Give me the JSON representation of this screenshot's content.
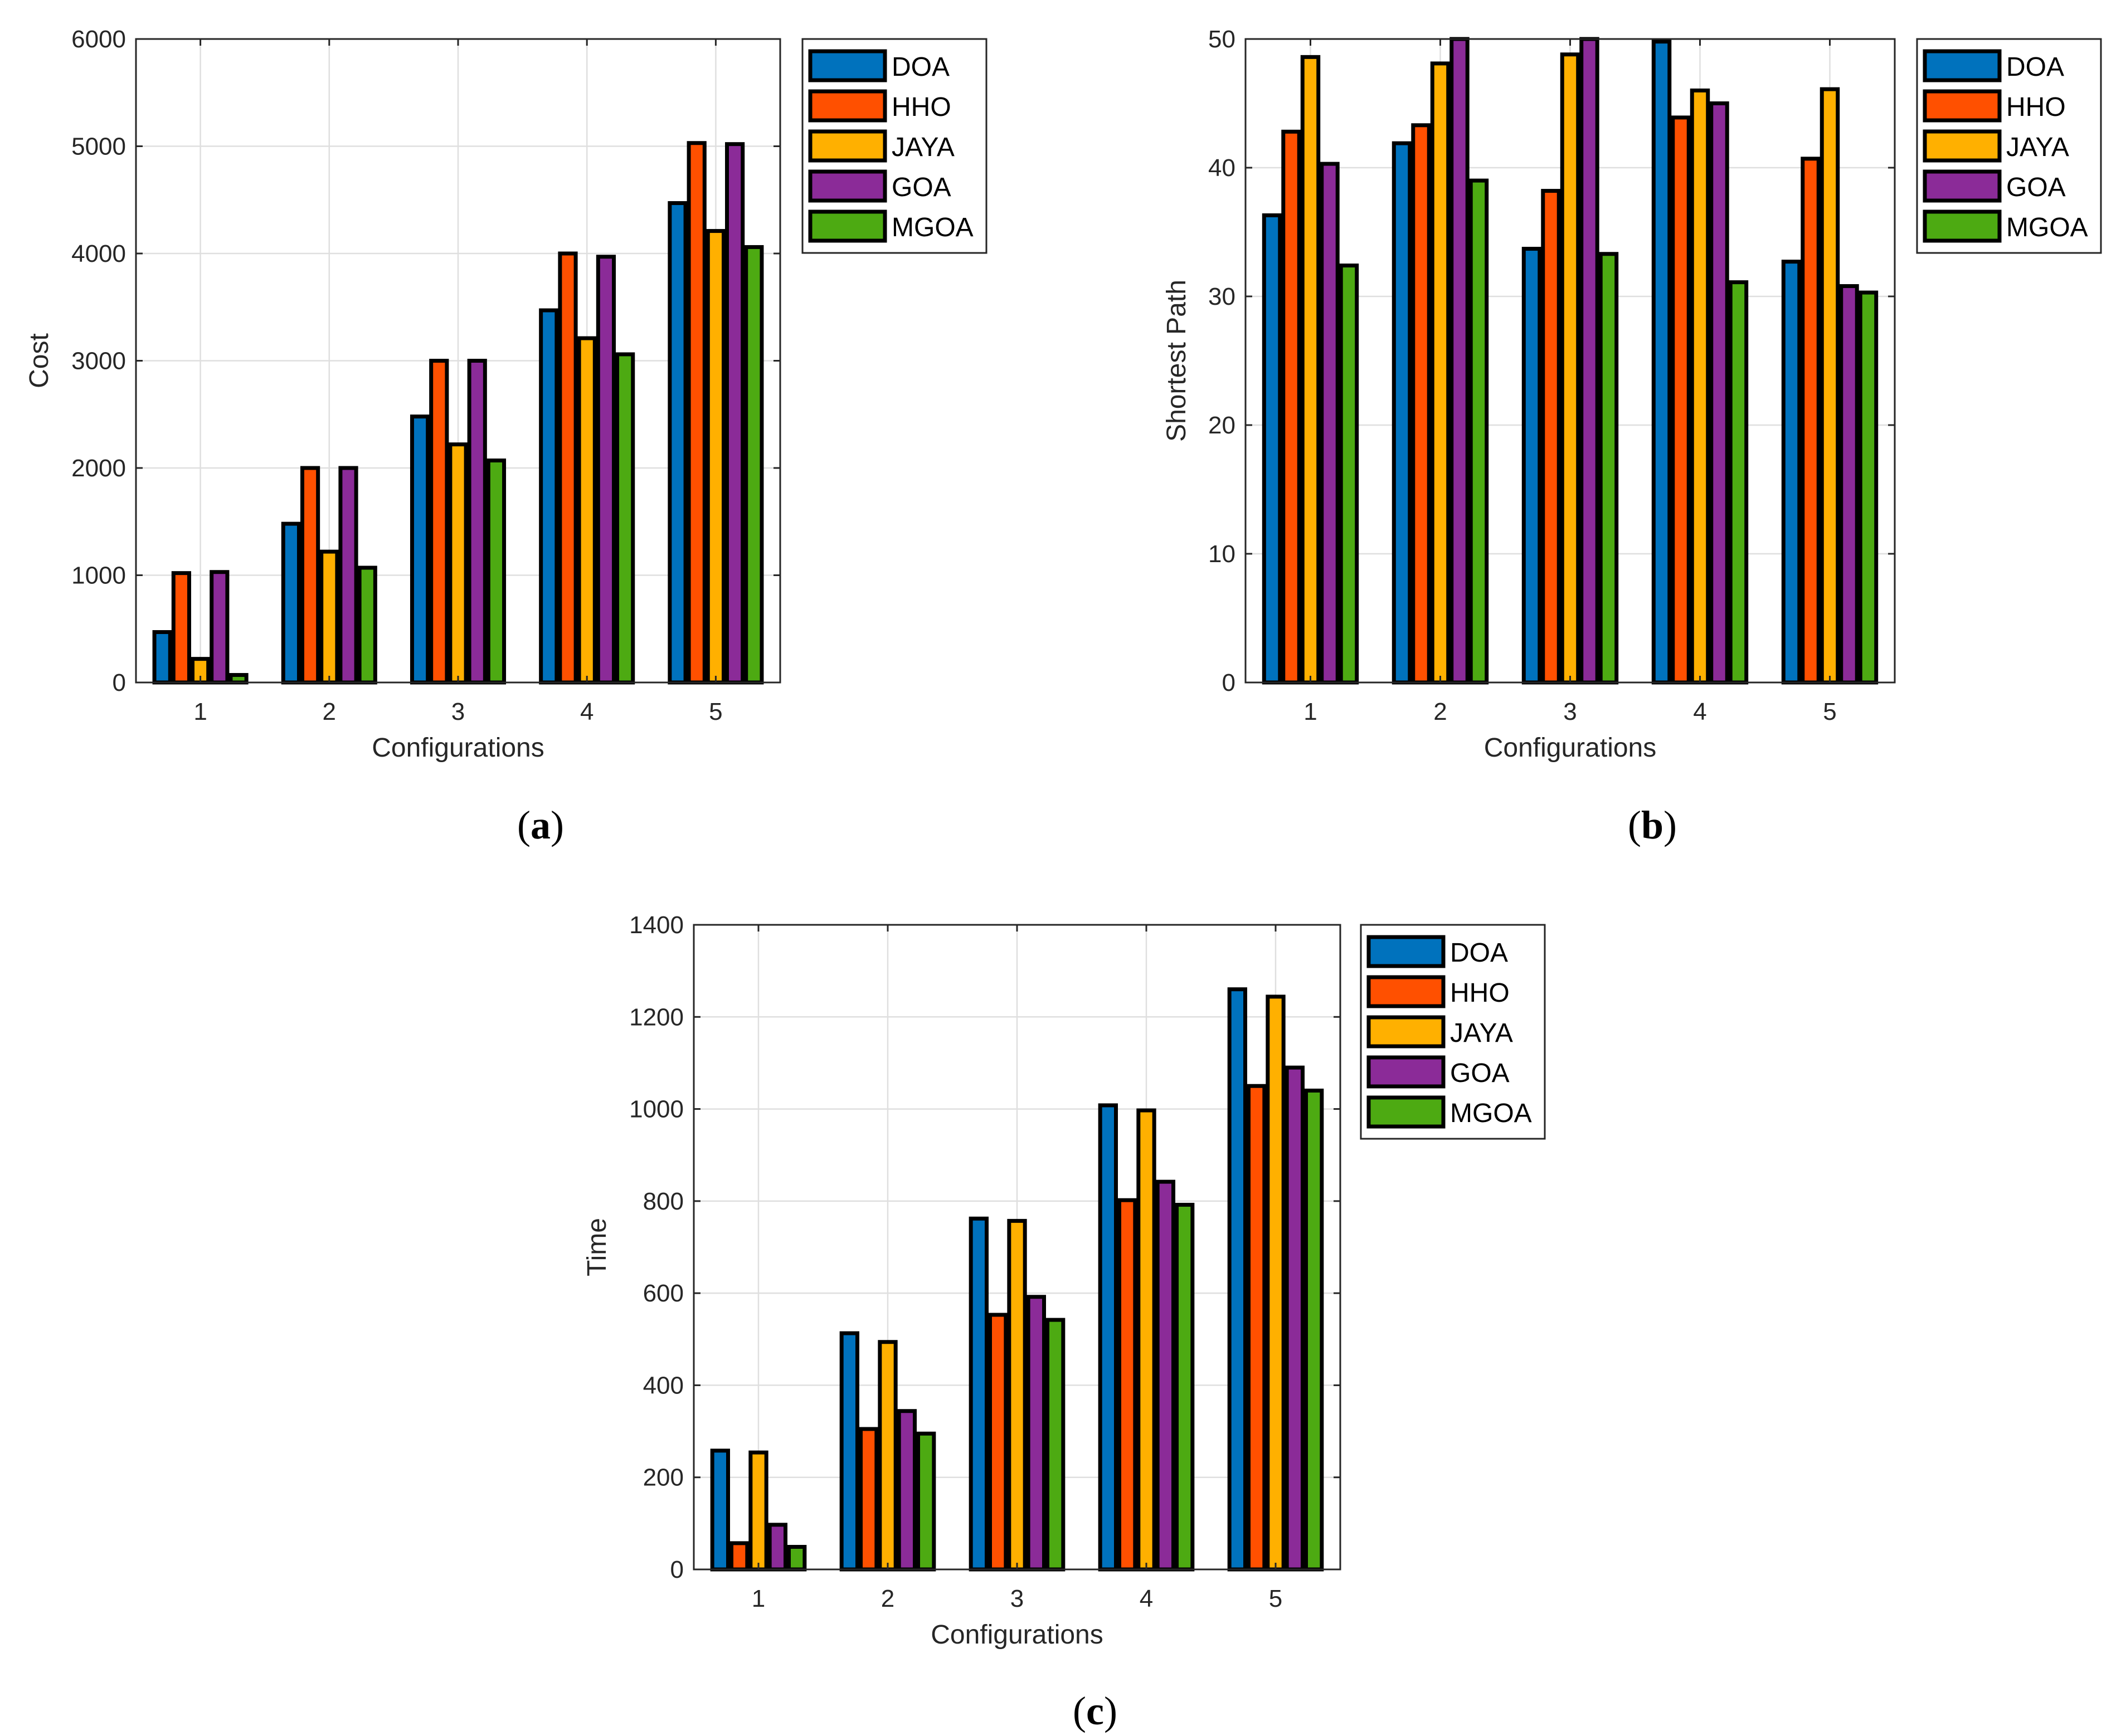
{
  "colors": {
    "DOA": "#0072BD",
    "HHO": "#FF5000",
    "JAYA": "#FFB000",
    "GOA": "#8B2B98",
    "MGOA": "#4DAA12"
  },
  "chart_data": [
    {
      "id": "a",
      "type": "bar",
      "caption_label": "a",
      "xlabel": "Configurations",
      "ylabel": "Cost",
      "categories": [
        "1",
        "2",
        "3",
        "4",
        "5"
      ],
      "ylim": [
        0,
        6000
      ],
      "yticks": [
        0,
        1000,
        2000,
        3000,
        4000,
        5000,
        6000
      ],
      "grid": true,
      "legend_position": "outside-top-right",
      "series": [
        {
          "name": "DOA",
          "values": [
            470,
            1480,
            2480,
            3470,
            4470
          ]
        },
        {
          "name": "HHO",
          "values": [
            1020,
            2000,
            3000,
            4000,
            5030
          ]
        },
        {
          "name": "JAYA",
          "values": [
            220,
            1220,
            2220,
            3210,
            4210
          ]
        },
        {
          "name": "GOA",
          "values": [
            1030,
            2000,
            3000,
            3970,
            5020
          ]
        },
        {
          "name": "MGOA",
          "values": [
            70,
            1070,
            2070,
            3060,
            4060
          ]
        }
      ]
    },
    {
      "id": "b",
      "type": "bar",
      "caption_label": "b",
      "xlabel": "Configurations",
      "ylabel": "Shortest Path",
      "categories": [
        "1",
        "2",
        "3",
        "4",
        "5"
      ],
      "ylim": [
        0,
        50
      ],
      "yticks": [
        0,
        10,
        20,
        30,
        40,
        50
      ],
      "grid": true,
      "legend_position": "outside-top-right",
      "series": [
        {
          "name": "DOA",
          "values": [
            36.3,
            41.9,
            33.7,
            49.8,
            32.7
          ]
        },
        {
          "name": "HHO",
          "values": [
            42.8,
            43.3,
            38.2,
            43.9,
            40.7
          ]
        },
        {
          "name": "JAYA",
          "values": [
            48.6,
            48.1,
            48.8,
            46.0,
            46.1
          ]
        },
        {
          "name": "GOA",
          "values": [
            40.3,
            50.0,
            50.0,
            45.0,
            30.8
          ]
        },
        {
          "name": "MGOA",
          "values": [
            32.4,
            39.0,
            33.3,
            31.1,
            30.3
          ]
        }
      ]
    },
    {
      "id": "c",
      "type": "bar",
      "caption_label": "c",
      "xlabel": "Configurations",
      "ylabel": "Time",
      "categories": [
        "1",
        "2",
        "3",
        "4",
        "5"
      ],
      "ylim": [
        0,
        1400
      ],
      "yticks": [
        0,
        200,
        400,
        600,
        800,
        1000,
        1200,
        1400
      ],
      "grid": true,
      "legend_position": "outside-top-right",
      "series": [
        {
          "name": "DOA",
          "values": [
            258,
            513,
            762,
            1008,
            1260
          ]
        },
        {
          "name": "HHO",
          "values": [
            57,
            305,
            553,
            802,
            1050
          ]
        },
        {
          "name": "JAYA",
          "values": [
            254,
            494,
            757,
            997,
            1244
          ]
        },
        {
          "name": "GOA",
          "values": [
            97,
            344,
            592,
            842,
            1090
          ]
        },
        {
          "name": "MGOA",
          "values": [
            49,
            295,
            542,
            792,
            1040
          ]
        }
      ]
    }
  ]
}
